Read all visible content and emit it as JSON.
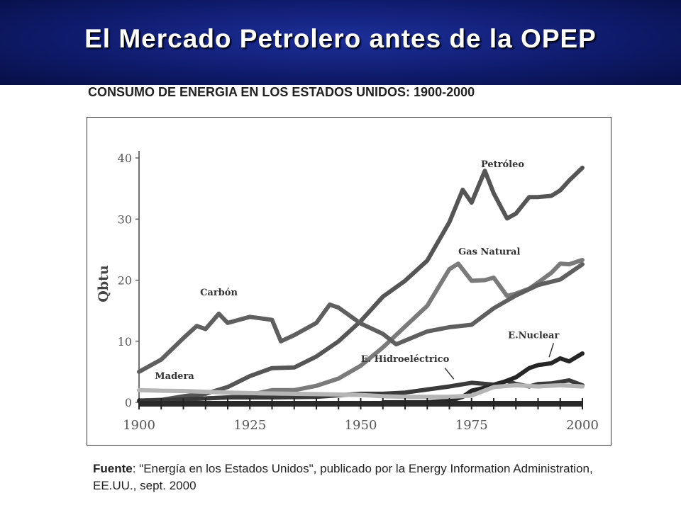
{
  "slide": {
    "title": "El Mercado Petrolero antes de la OPEP"
  },
  "source": {
    "label": "Fuente",
    "text": ": \"Energía en los Estados Unidos\", publicado por la Energy Information Administration, EE.UU., sept. 2000"
  },
  "chart_data": {
    "type": "line",
    "title": "CONSUMO DE ENERGIA EN LOS ESTADOS UNIDOS: 1900-2000",
    "xlabel": "",
    "ylabel": "Qbtu",
    "xlim": [
      1900,
      2000
    ],
    "ylim": [
      0,
      40
    ],
    "x_ticks": [
      1900,
      1925,
      1950,
      1975,
      2000
    ],
    "y_ticks": [
      0,
      10,
      20,
      30,
      40
    ],
    "grid": false,
    "legend": "inline labels",
    "series": [
      {
        "name": "Petróleo",
        "color": "#555555",
        "points": [
          [
            1900,
            0.2
          ],
          [
            1905,
            0.4
          ],
          [
            1910,
            1.0
          ],
          [
            1915,
            1.4
          ],
          [
            1920,
            2.5
          ],
          [
            1925,
            4.3
          ],
          [
            1930,
            5.6
          ],
          [
            1935,
            5.7
          ],
          [
            1940,
            7.5
          ],
          [
            1945,
            10.0
          ],
          [
            1950,
            13.3
          ],
          [
            1955,
            17.3
          ],
          [
            1960,
            19.9
          ],
          [
            1965,
            23.2
          ],
          [
            1970,
            29.5
          ],
          [
            1973,
            34.8
          ],
          [
            1975,
            32.7
          ],
          [
            1978,
            37.9
          ],
          [
            1980,
            34.2
          ],
          [
            1983,
            30.1
          ],
          [
            1985,
            30.9
          ],
          [
            1988,
            33.6
          ],
          [
            1990,
            33.6
          ],
          [
            1993,
            33.8
          ],
          [
            1995,
            34.7
          ],
          [
            1997,
            36.3
          ],
          [
            2000,
            38.4
          ]
        ]
      },
      {
        "name": "Gas Natural",
        "color": "#7a7a7a",
        "points": [
          [
            1900,
            0.3
          ],
          [
            1910,
            0.5
          ],
          [
            1920,
            0.8
          ],
          [
            1925,
            1.2
          ],
          [
            1930,
            2.0
          ],
          [
            1935,
            2.0
          ],
          [
            1940,
            2.7
          ],
          [
            1945,
            3.9
          ],
          [
            1950,
            6.0
          ],
          [
            1955,
            9.0
          ],
          [
            1960,
            12.4
          ],
          [
            1965,
            15.8
          ],
          [
            1970,
            21.8
          ],
          [
            1972,
            22.7
          ],
          [
            1975,
            19.9
          ],
          [
            1978,
            20.0
          ],
          [
            1980,
            20.4
          ],
          [
            1983,
            17.4
          ],
          [
            1985,
            17.8
          ],
          [
            1988,
            18.6
          ],
          [
            1990,
            19.6
          ],
          [
            1993,
            21.2
          ],
          [
            1995,
            22.7
          ],
          [
            1997,
            22.6
          ],
          [
            2000,
            23.3
          ]
        ]
      },
      {
        "name": "Carbón",
        "color": "#5f5f5f",
        "points": [
          [
            1900,
            5.0
          ],
          [
            1905,
            7.0
          ],
          [
            1910,
            10.5
          ],
          [
            1913,
            12.5
          ],
          [
            1915,
            12.0
          ],
          [
            1918,
            14.5
          ],
          [
            1920,
            13.0
          ],
          [
            1925,
            14.0
          ],
          [
            1930,
            13.5
          ],
          [
            1932,
            10.0
          ],
          [
            1935,
            11.0
          ],
          [
            1940,
            13.0
          ],
          [
            1943,
            16.0
          ],
          [
            1945,
            15.5
          ],
          [
            1950,
            12.9
          ],
          [
            1955,
            11.2
          ],
          [
            1958,
            9.5
          ],
          [
            1960,
            10.1
          ],
          [
            1965,
            11.6
          ],
          [
            1970,
            12.3
          ],
          [
            1975,
            12.7
          ],
          [
            1980,
            15.4
          ],
          [
            1985,
            17.5
          ],
          [
            1990,
            19.2
          ],
          [
            1995,
            20.1
          ],
          [
            2000,
            22.6
          ]
        ]
      },
      {
        "name": "E. Hidroeléctrica",
        "color": "#3a3a3a",
        "points": [
          [
            1900,
            0.25
          ],
          [
            1910,
            0.5
          ],
          [
            1920,
            0.8
          ],
          [
            1930,
            0.8
          ],
          [
            1940,
            0.9
          ],
          [
            1950,
            1.4
          ],
          [
            1955,
            1.4
          ],
          [
            1960,
            1.6
          ],
          [
            1965,
            2.1
          ],
          [
            1970,
            2.6
          ],
          [
            1975,
            3.2
          ],
          [
            1980,
            2.9
          ],
          [
            1983,
            3.5
          ],
          [
            1985,
            3.0
          ],
          [
            1988,
            2.6
          ],
          [
            1990,
            3.0
          ],
          [
            1993,
            3.1
          ],
          [
            1997,
            3.6
          ],
          [
            2000,
            2.8
          ]
        ]
      },
      {
        "name": "E.Nuclear",
        "color": "#262626",
        "points": [
          [
            1955,
            0
          ],
          [
            1960,
            0.01
          ],
          [
            1965,
            0.04
          ],
          [
            1970,
            0.24
          ],
          [
            1973,
            0.9
          ],
          [
            1975,
            1.9
          ],
          [
            1980,
            2.7
          ],
          [
            1985,
            4.1
          ],
          [
            1988,
            5.6
          ],
          [
            1990,
            6.1
          ],
          [
            1993,
            6.4
          ],
          [
            1995,
            7.2
          ],
          [
            1997,
            6.7
          ],
          [
            2000,
            8.0
          ]
        ]
      },
      {
        "name": "Madera",
        "color": "#b5b5b5",
        "points": [
          [
            1900,
            2.0
          ],
          [
            1905,
            1.9
          ],
          [
            1910,
            1.86
          ],
          [
            1920,
            1.6
          ],
          [
            1930,
            1.45
          ],
          [
            1940,
            1.35
          ],
          [
            1950,
            1.2
          ],
          [
            1955,
            1.0
          ],
          [
            1960,
            0.9
          ],
          [
            1965,
            0.9
          ],
          [
            1970,
            0.9
          ],
          [
            1975,
            1.1
          ],
          [
            1980,
            2.5
          ],
          [
            1985,
            2.8
          ],
          [
            1990,
            2.6
          ],
          [
            1995,
            2.8
          ],
          [
            2000,
            2.6
          ]
        ]
      }
    ],
    "annotations": [
      {
        "text": "Petróleo",
        "x": 1982,
        "y": 38.5
      },
      {
        "text": "Gas Natural",
        "x": 1979,
        "y": 24.2
      },
      {
        "text": "Carbón",
        "x": 1918,
        "y": 17.5
      },
      {
        "text": "E.Nuclear",
        "x": 1989,
        "y": 10.5
      },
      {
        "text": "E. Hidroeléctrico",
        "x": 1960,
        "y": 6.6
      },
      {
        "text": "Madera",
        "x": 1908,
        "y": 3.8
      }
    ]
  }
}
